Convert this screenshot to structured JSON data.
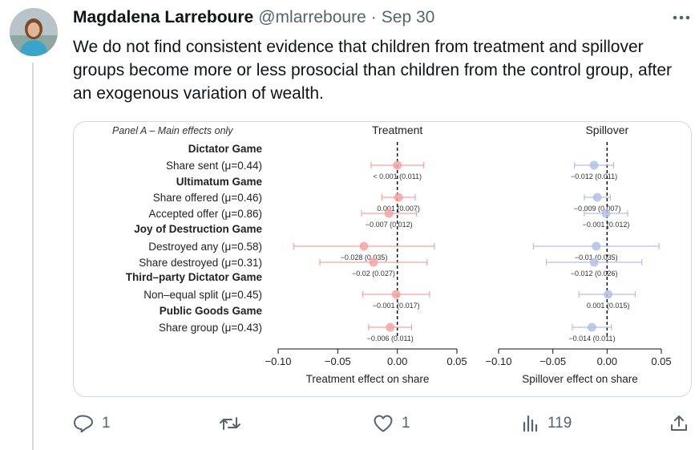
{
  "tweet": {
    "author_name": "Magdalena Larreboure",
    "handle": "@mlarreboure",
    "separator": "·",
    "date": "Sep 30",
    "text": "We do not find consistent evidence that children from treatment and spillover groups become more or less prosocial than children from the control group, after an exogenous variation of wealth.",
    "more_icon": "more-horizontal-icon"
  },
  "actions": {
    "reply": {
      "icon": "reply-icon",
      "count": "1"
    },
    "retweet": {
      "icon": "retweet-icon",
      "count": ""
    },
    "like": {
      "icon": "heart-icon",
      "count": "1"
    },
    "views": {
      "icon": "views-icon",
      "count": "119"
    },
    "share": {
      "icon": "share-icon"
    }
  },
  "colors": {
    "treatment": "#f4a3a3",
    "spillover": "#b4bfe4",
    "text_secondary": "#536471"
  },
  "chart_data": {
    "type": "scatter",
    "subtype": "coefficient-plot",
    "panel_label": "Panel A – Main effects only",
    "x_ticks": [
      -0.1,
      -0.05,
      0.0,
      0.05
    ],
    "x_tick_labels": [
      "−0.10",
      "−0.05",
      "0.00",
      "0.05"
    ],
    "xlim": [
      -0.1,
      0.05
    ],
    "rows": [
      {
        "label": "Dictator Game",
        "header": true
      },
      {
        "label": "Share sent (μ=0.44)",
        "header": false
      },
      {
        "label": "Ultimatum Game",
        "header": true
      },
      {
        "label": "Share offered (μ=0.46)",
        "header": false
      },
      {
        "label": "Accepted offer (μ=0.86)",
        "header": false
      },
      {
        "label": "Joy of Destruction Game",
        "header": true
      },
      {
        "label": "Destroyed any (μ=0.58)",
        "header": false
      },
      {
        "label": "Share destroyed (μ=0.31)",
        "header": false
      },
      {
        "label": "Third–party Dictator Game",
        "header": true
      },
      {
        "label": "Non–equal split (μ=0.45)",
        "header": false
      },
      {
        "label": "Public Goods Game",
        "header": true
      },
      {
        "label": "Share group (μ=0.43)",
        "header": false
      }
    ],
    "panels": [
      {
        "title": "Treatment",
        "xlabel": "Treatment effect on share",
        "color_key": "treatment",
        "points": [
          {
            "estimate": 0.0,
            "low": -0.022,
            "high": 0.022,
            "label": "< 0.001 (0.011)"
          },
          {
            "estimate": 0.001,
            "low": -0.013,
            "high": 0.015,
            "label": "0.001 (0.007)"
          },
          {
            "estimate": -0.007,
            "low": -0.03,
            "high": 0.016,
            "label": "−0.007 (0.012)"
          },
          {
            "estimate": -0.028,
            "low": -0.087,
            "high": 0.031,
            "label": "−0.028 (0.035)"
          },
          {
            "estimate": -0.02,
            "low": -0.065,
            "high": 0.025,
            "label": "−0.02 (0.027)"
          },
          {
            "estimate": -0.001,
            "low": -0.029,
            "high": 0.027,
            "label": "−0.001 (0.017)"
          },
          {
            "estimate": -0.006,
            "low": -0.024,
            "high": 0.012,
            "label": "−0.006 (0.011)"
          }
        ]
      },
      {
        "title": "Spillover",
        "xlabel": "Spillover effect on share",
        "color_key": "spillover",
        "points": [
          {
            "estimate": -0.012,
            "low": -0.03,
            "high": 0.006,
            "label": "−0.012 (0.011)"
          },
          {
            "estimate": -0.009,
            "low": -0.021,
            "high": 0.003,
            "label": "−0.009 (0.007)"
          },
          {
            "estimate": -0.001,
            "low": -0.021,
            "high": 0.019,
            "label": "−0.001 (0.012)"
          },
          {
            "estimate": -0.01,
            "low": -0.068,
            "high": 0.048,
            "label": "−0.01 (0.035)"
          },
          {
            "estimate": -0.012,
            "low": -0.056,
            "high": 0.032,
            "label": "−0.012 (0.026)"
          },
          {
            "estimate": 0.001,
            "low": -0.026,
            "high": 0.026,
            "label": "0.001 (0.015)"
          },
          {
            "estimate": -0.014,
            "low": -0.032,
            "high": 0.004,
            "label": "−0.014 (0.011)"
          }
        ]
      }
    ]
  }
}
